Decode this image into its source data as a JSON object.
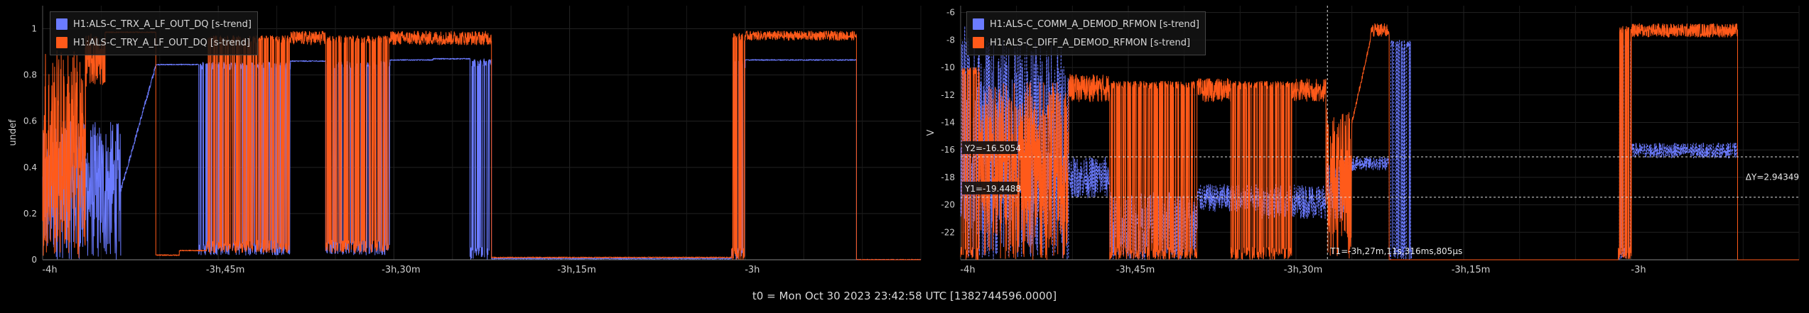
{
  "footer": {
    "t0_label": "t0 = Mon Oct 30 2023 23:42:58 UTC [1382744596.0000]"
  },
  "colors": {
    "series_blue": "#6b7bff",
    "series_orange": "#ff5a1a",
    "background": "#000000",
    "grid": "#222222",
    "cursor": "#e0e0e0"
  },
  "chart_data": [
    {
      "type": "line",
      "title": "",
      "xlabel": "",
      "ylabel": "undef",
      "grid": true,
      "legend_placement": "top-left",
      "xlim_seconds": [
        -14400,
        -9900
      ],
      "ylim": [
        0,
        1.1
      ],
      "x_ticks": [
        {
          "value": -14400,
          "label": "-4h"
        },
        {
          "value": -13500,
          "label": "-3h,45m"
        },
        {
          "value": -12600,
          "label": "-3h,30m"
        },
        {
          "value": -11700,
          "label": "-3h,15m"
        },
        {
          "value": -10800,
          "label": "-3h"
        }
      ],
      "y_ticks": [
        0,
        0.2,
        0.4,
        0.6,
        0.8,
        1
      ],
      "y_tick_labels": [
        "0",
        "0.2",
        "0.4",
        "0.6",
        "0.8",
        "1"
      ],
      "series": [
        {
          "name": "H1:ALS-C_TRX_A_LF_OUT_DQ [s-trend]",
          "color": "#6b7bff",
          "style": "solid",
          "segments": [
            {
              "x0": -14400,
              "x1": -14360,
              "kind": "noise",
              "lo": 0,
              "hi": 0.55
            },
            {
              "x0": -14360,
              "x1": -14000,
              "kind": "noise",
              "lo": 0,
              "hi": 0.6
            },
            {
              "x0": -14000,
              "x1": -13820,
              "kind": "rise",
              "from": 0.3,
              "to": 0.84
            },
            {
              "x0": -13820,
              "x1": -13600,
              "kind": "flat",
              "value": 0.845
            },
            {
              "x0": -13600,
              "x1": -13130,
              "kind": "bursty",
              "high": 0.855,
              "low": 0.02
            },
            {
              "x0": -13130,
              "x1": -12950,
              "kind": "flat",
              "value": 0.86
            },
            {
              "x0": -12950,
              "x1": -12620,
              "kind": "bursty",
              "high": 0.86,
              "low": 0.02
            },
            {
              "x0": -12620,
              "x1": -12400,
              "kind": "flat",
              "value": 0.865
            },
            {
              "x0": -12400,
              "x1": -12210,
              "kind": "flat",
              "value": 0.87
            },
            {
              "x0": -12210,
              "x1": -12100,
              "kind": "bursty",
              "high": 0.87,
              "low": 0.0
            },
            {
              "x0": -12100,
              "x1": -10870,
              "kind": "flat",
              "value": 0.005
            },
            {
              "x0": -10870,
              "x1": -10800,
              "kind": "bursty",
              "high": 0.86,
              "low": 0.0
            },
            {
              "x0": -10800,
              "x1": -10230,
              "kind": "flat",
              "value": 0.865
            },
            {
              "x0": -10230,
              "x1": -9900,
              "kind": "flat",
              "value": 0.0
            }
          ]
        },
        {
          "name": "H1:ALS-C_TRY_A_LF_OUT_DQ [s-trend]",
          "color": "#ff5a1a",
          "style": "solid",
          "segments": [
            {
              "x0": -14400,
              "x1": -14180,
              "kind": "noise",
              "lo": 0.0,
              "hi": 0.92
            },
            {
              "x0": -14180,
              "x1": -14080,
              "kind": "noise",
              "lo": 0.75,
              "hi": 0.98
            },
            {
              "x0": -14080,
              "x1": -13820,
              "kind": "flat",
              "value": 0.985
            },
            {
              "x0": -13820,
              "x1": -13700,
              "kind": "flat",
              "value": 0.02
            },
            {
              "x0": -13700,
              "x1": -13560,
              "kind": "flat",
              "value": 0.04
            },
            {
              "x0": -13560,
              "x1": -13130,
              "kind": "bursty",
              "high": 0.97,
              "low": 0.03
            },
            {
              "x0": -13130,
              "x1": -12950,
              "kind": "noise",
              "lo": 0.93,
              "hi": 0.99
            },
            {
              "x0": -12950,
              "x1": -12620,
              "kind": "bursty",
              "high": 0.97,
              "low": 0.03
            },
            {
              "x0": -12620,
              "x1": -12100,
              "kind": "noise",
              "lo": 0.93,
              "hi": 0.99
            },
            {
              "x0": -12100,
              "x1": -10870,
              "kind": "flat",
              "value": 0.01
            },
            {
              "x0": -10870,
              "x1": -10800,
              "kind": "bursty",
              "high": 0.98,
              "low": 0.0
            },
            {
              "x0": -10800,
              "x1": -10230,
              "kind": "noise",
              "lo": 0.95,
              "hi": 0.99
            },
            {
              "x0": -10230,
              "x1": -9900,
              "kind": "flat",
              "value": 0.0
            }
          ]
        }
      ]
    },
    {
      "type": "line",
      "title": "",
      "xlabel": "",
      "ylabel": "V",
      "grid": true,
      "legend_placement": "top-left",
      "xlim_seconds": [
        -14400,
        -9900
      ],
      "ylim": [
        -24,
        -5.5
      ],
      "x_ticks": [
        {
          "value": -14400,
          "label": "-4h"
        },
        {
          "value": -13500,
          "label": "-3h,45m"
        },
        {
          "value": -12600,
          "label": "-3h,30m"
        },
        {
          "value": -11700,
          "label": "-3h,15m"
        },
        {
          "value": -10800,
          "label": "-3h"
        }
      ],
      "y_ticks": [
        -22,
        -20,
        -18,
        -16,
        -14,
        -12,
        -10,
        -8,
        -6
      ],
      "y_tick_labels": [
        "-22",
        "-20",
        "-18",
        "-16",
        "-14",
        "-12",
        "-10",
        "-8",
        "-6"
      ],
      "cursors": {
        "y1_label": "Y1=-19.4488",
        "y1": -19.4488,
        "y2_label": "Y2=-16.5054",
        "y2": -16.5054,
        "delta_label": "ΔY=2.94349",
        "t1_label": "T1=-3h,27m,11s,316ms,805µs",
        "t1": -12431.3
      },
      "series": [
        {
          "name": "H1:ALS-C_COMM_A_DEMOD_RFMON [s-trend]",
          "color": "#6b7bff",
          "style": "dashed",
          "segments": [
            {
              "x0": -14400,
              "x1": -14350,
              "kind": "noise",
              "lo": -24,
              "hi": -6
            },
            {
              "x0": -14350,
              "x1": -13820,
              "kind": "noise",
              "lo": -24,
              "hi": -8
            },
            {
              "x0": -13820,
              "x1": -13600,
              "kind": "noise",
              "lo": -19.5,
              "hi": -16.5
            },
            {
              "x0": -13600,
              "x1": -13130,
              "kind": "noise",
              "lo": -24,
              "hi": -19
            },
            {
              "x0": -13130,
              "x1": -12800,
              "kind": "noise",
              "lo": -20.5,
              "hi": -18.5
            },
            {
              "x0": -12800,
              "x1": -12440,
              "kind": "noise",
              "lo": -21,
              "hi": -18.5
            },
            {
              "x0": -12440,
              "x1": -12340,
              "kind": "noise",
              "lo": -21,
              "hi": -17
            },
            {
              "x0": -12340,
              "x1": -12100,
              "kind": "noise",
              "lo": -17.5,
              "hi": -16.5
            },
            {
              "x0": -12100,
              "x1": -11980,
              "kind": "bursty",
              "high": -8,
              "low": -24
            },
            {
              "x0": -11980,
              "x1": -10870,
              "kind": "flat",
              "value": -24.5
            },
            {
              "x0": -10870,
              "x1": -10800,
              "kind": "bursty",
              "high": -8,
              "low": -24
            },
            {
              "x0": -10800,
              "x1": -10230,
              "kind": "noise",
              "lo": -16.6,
              "hi": -15.5
            },
            {
              "x0": -10230,
              "x1": -9900,
              "kind": "flat",
              "value": -24.5
            }
          ]
        },
        {
          "name": "H1:ALS-C_DIFF_A_DEMOD_RFMON [s-trend]",
          "color": "#ff5a1a",
          "style": "solid",
          "segments": [
            {
              "x0": -14400,
              "x1": -14300,
              "kind": "bursty",
              "high": -10,
              "low": -24
            },
            {
              "x0": -14300,
              "x1": -13820,
              "kind": "noise",
              "lo": -24,
              "hi": -11
            },
            {
              "x0": -13820,
              "x1": -13600,
              "kind": "noise",
              "lo": -12.5,
              "hi": -10.5
            },
            {
              "x0": -13600,
              "x1": -13130,
              "kind": "bursty",
              "high": -11,
              "low": -24
            },
            {
              "x0": -13130,
              "x1": -12950,
              "kind": "noise",
              "lo": -12.5,
              "hi": -10.8
            },
            {
              "x0": -12950,
              "x1": -12620,
              "kind": "bursty",
              "high": -11,
              "low": -24
            },
            {
              "x0": -12620,
              "x1": -12440,
              "kind": "noise",
              "lo": -12.5,
              "hi": -10.8
            },
            {
              "x0": -12440,
              "x1": -12300,
              "kind": "noise",
              "lo": -24,
              "hi": -13
            },
            {
              "x0": -12300,
              "x1": -12200,
              "kind": "rise",
              "from": -14,
              "to": -8
            },
            {
              "x0": -12200,
              "x1": -12100,
              "kind": "noise",
              "lo": -7.8,
              "hi": -6.8
            },
            {
              "x0": -12100,
              "x1": -10870,
              "kind": "flat",
              "value": -24.5
            },
            {
              "x0": -10870,
              "x1": -10800,
              "kind": "bursty",
              "high": -7,
              "low": -24
            },
            {
              "x0": -10800,
              "x1": -10230,
              "kind": "noise",
              "lo": -7.8,
              "hi": -6.8
            },
            {
              "x0": -10230,
              "x1": -9900,
              "kind": "flat",
              "value": -24.5
            }
          ]
        }
      ]
    }
  ]
}
